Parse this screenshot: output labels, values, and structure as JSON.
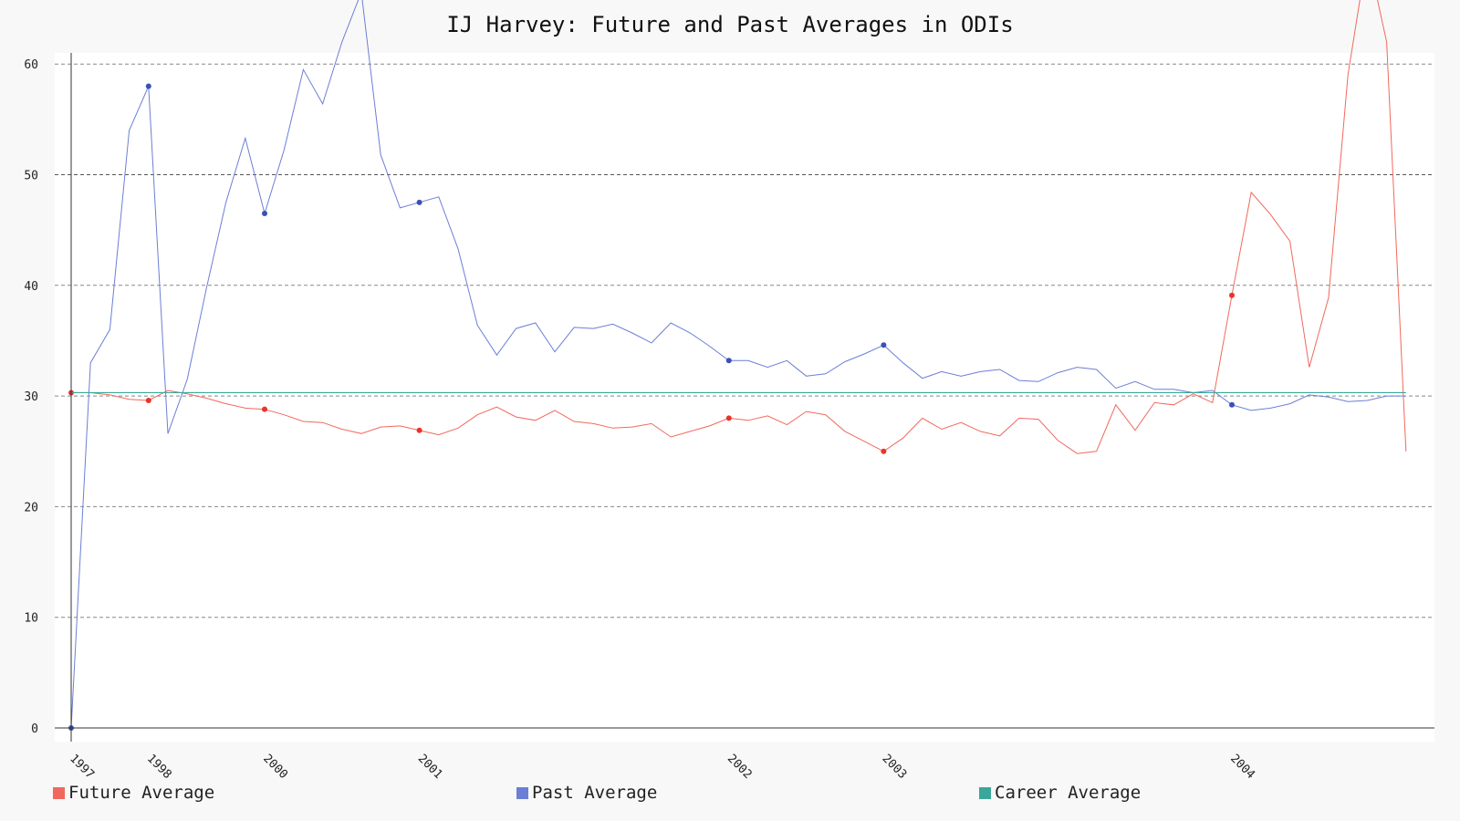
{
  "chart_data": {
    "type": "line",
    "title": "IJ Harvey: Future and Past Averages in ODIs",
    "xlabel": "",
    "ylabel": "",
    "ylim": [
      0,
      61
    ],
    "y_ticks": [
      0,
      10,
      20,
      30,
      40,
      50,
      60
    ],
    "x_tick_labels": [
      {
        "label": "1997",
        "index": 0
      },
      {
        "label": "1998",
        "index": 4
      },
      {
        "label": "2000",
        "index": 10
      },
      {
        "label": "2001",
        "index": 18
      },
      {
        "label": "2002",
        "index": 34
      },
      {
        "label": "2003",
        "index": 42
      },
      {
        "label": "2004",
        "index": 60
      }
    ],
    "grid": true,
    "legend_position": "bottom",
    "series": [
      {
        "name": "Future Average",
        "color": "#f0695c",
        "values": [
          30.3,
          30.3,
          30.1,
          29.7,
          29.6,
          30.5,
          30.2,
          29.8,
          29.3,
          28.9,
          28.8,
          28.3,
          27.7,
          27.6,
          27.0,
          26.6,
          27.2,
          27.3,
          26.9,
          26.5,
          27.1,
          28.3,
          29.0,
          28.1,
          27.8,
          28.7,
          27.7,
          27.5,
          27.1,
          27.2,
          27.5,
          26.3,
          26.8,
          27.3,
          28.0,
          27.8,
          28.2,
          27.4,
          28.6,
          28.3,
          26.8,
          25.9,
          25.0,
          26.2,
          28.0,
          27.0,
          27.6,
          26.8,
          26.4,
          28.0,
          27.9,
          26.0,
          24.8,
          25.0,
          29.2,
          26.9,
          29.4,
          29.2,
          30.2,
          29.4,
          39.1,
          48.4,
          46.4,
          44.0,
          32.6,
          38.9,
          59.0,
          70.0,
          62.0,
          25.0
        ],
        "highlight_indices": [
          0,
          4,
          10,
          18,
          34,
          42,
          60
        ]
      },
      {
        "name": "Past Average",
        "color": "#6b7fd6",
        "values": [
          0.0,
          33.0,
          36.0,
          54.0,
          58.0,
          26.6,
          31.5,
          39.8,
          47.5,
          53.3,
          46.5,
          52.2,
          59.5,
          56.4,
          62.0,
          66.5,
          51.8,
          47.0,
          47.5,
          48.0,
          43.3,
          36.4,
          33.7,
          36.1,
          36.6,
          34.0,
          36.2,
          36.1,
          36.5,
          35.7,
          34.8,
          36.6,
          35.7,
          34.5,
          33.2,
          33.2,
          32.6,
          33.2,
          31.8,
          32.0,
          33.1,
          33.8,
          34.6,
          33.0,
          31.6,
          32.2,
          31.8,
          32.2,
          32.4,
          31.4,
          31.3,
          32.1,
          32.6,
          32.4,
          30.7,
          31.3,
          30.6,
          30.6,
          30.3,
          30.5,
          29.2,
          28.7,
          28.9,
          29.3,
          30.1,
          29.9,
          29.5,
          29.6,
          30.0,
          30.0
        ],
        "highlight_indices": [
          0,
          4,
          10,
          18,
          34,
          42,
          60
        ]
      },
      {
        "name": "Career Average",
        "color": "#3aa79a",
        "constant": 30.3
      }
    ]
  }
}
